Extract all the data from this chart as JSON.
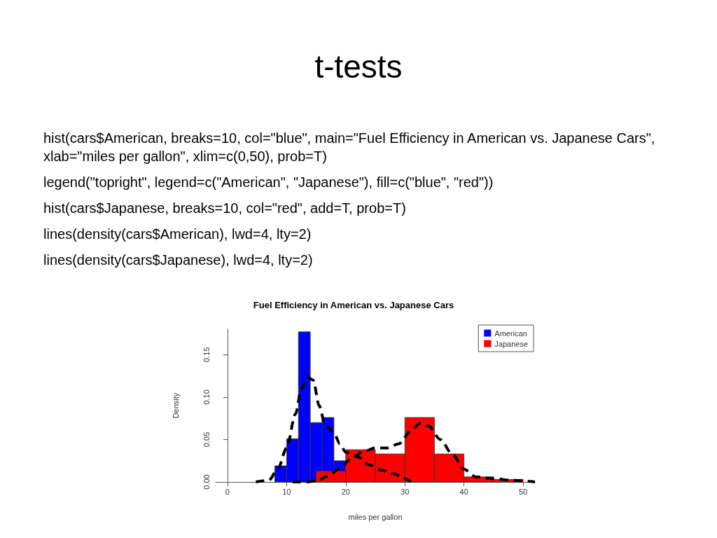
{
  "chart_data": {
    "type": "histogram",
    "title": "Fuel Efficiency in American vs. Japanese Cars",
    "xlabel": "miles per gallon",
    "ylabel": "Density",
    "annotations": [
      "t-tests",
      "hist(cars$American, breaks=10, col=\"blue\", main=\"Fuel Efficiency in American vs. Japanese Cars\", xlab=\"miles per gallon\", xlim=c(0,50), prob=T)",
      "legend(\"topright\", legend=c(\"American\", \"Japanese\"), fill=c(\"blue\", \"red\"))",
      "hist(cars$Japanese, breaks=10, col=\"red\", add=T, prob=T)",
      "lines(density(cars$American), lwd=4, lty=2)",
      "lines(density(cars$Japanese), lwd=4, lty=2)"
    ],
    "series": [
      {
        "name": "American",
        "color": "#0000ff",
        "bins": [
          8,
          10,
          12,
          14,
          16,
          18,
          20
        ],
        "values": [
          0.019,
          0.051,
          0.177,
          0.07,
          0.076,
          0.025
        ]
      },
      {
        "name": "Japanese",
        "color": "#ff0000",
        "bins": [
          15,
          20,
          25,
          30,
          35,
          40,
          45,
          50
        ],
        "values": [
          0.013,
          0.038,
          0.033,
          0.076,
          0.033,
          0.006,
          0.003
        ]
      },
      {
        "type": "line",
        "color": "#000000",
        "line_style": "dashed",
        "x": [
          4.8,
          7,
          8.5,
          10,
          11.5,
          12.5,
          13.5,
          14.5,
          15.5,
          16.5,
          18,
          19,
          20,
          22,
          24,
          26,
          28,
          30,
          31
        ],
        "values": [
          0,
          0.002,
          0.015,
          0.04,
          0.08,
          0.11,
          0.124,
          0.12,
          0.09,
          0.068,
          0.058,
          0.045,
          0.035,
          0.03,
          0.02,
          0.014,
          0.01,
          0.004,
          0
        ]
      },
      {
        "type": "line",
        "color": "#000000",
        "line_style": "dashed",
        "x": [
          11,
          13,
          15,
          17,
          19,
          21,
          23,
          25,
          27,
          29,
          31,
          32.5,
          34,
          36,
          38,
          40,
          42,
          45,
          48,
          52
        ],
        "values": [
          0,
          0,
          0.001,
          0.007,
          0.016,
          0.028,
          0.036,
          0.04,
          0.04,
          0.045,
          0.06,
          0.069,
          0.066,
          0.05,
          0.033,
          0.015,
          0.006,
          0.004,
          0.002,
          0
        ]
      }
    ],
    "xlim": [
      -2,
      52
    ],
    "xticks": [
      0,
      10,
      20,
      30,
      40,
      50
    ],
    "ylim": [
      0,
      0.18
    ],
    "yticks": [
      {
        "value": 0,
        "label": "0.00"
      },
      0.05,
      {
        "value": 0.1,
        "label": "0.10"
      },
      0.15
    ],
    "legend": "top right",
    "marker": "none"
  }
}
